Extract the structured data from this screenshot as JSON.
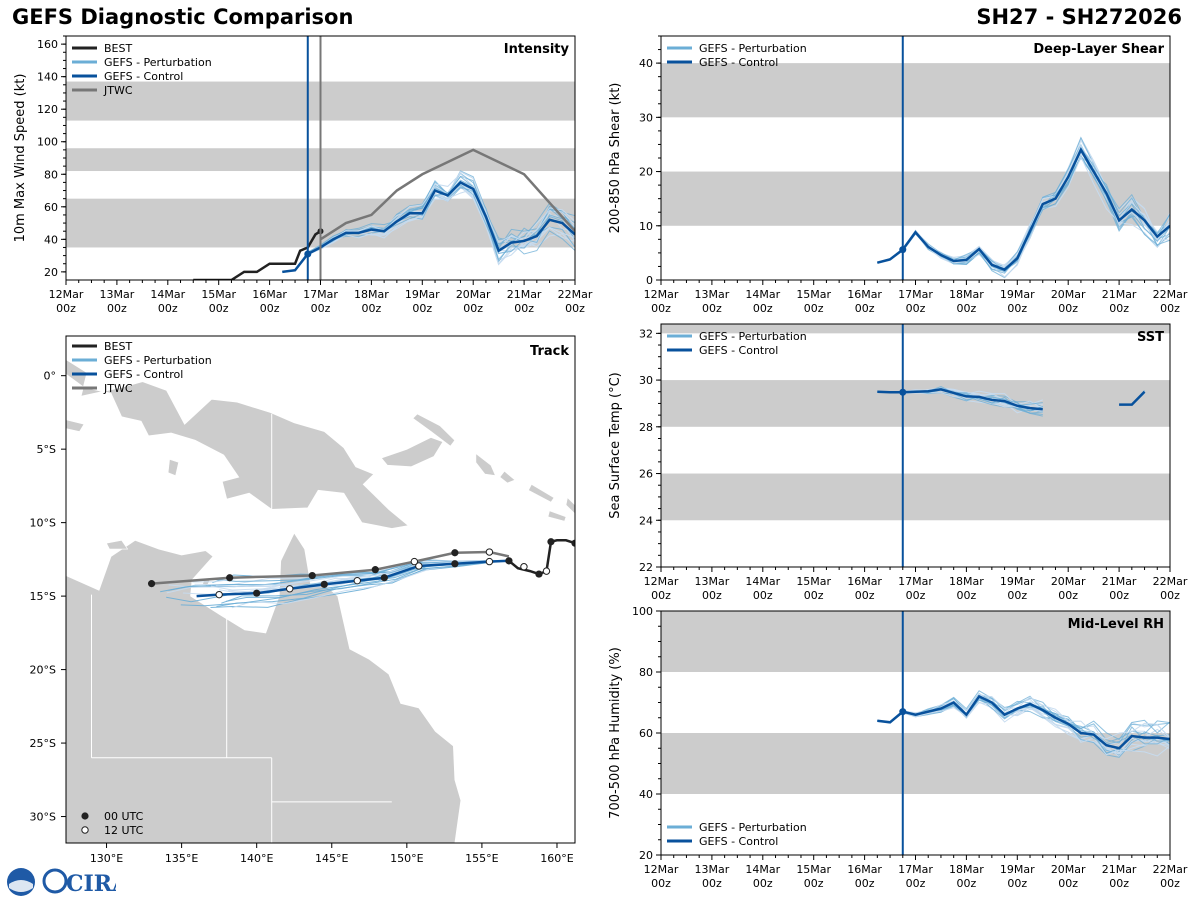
{
  "header": {
    "title": "GEFS Diagnostic Comparison",
    "storm_id": "SH27 - SH272026"
  },
  "logo": {
    "text": "CIRA",
    "brand_color": "#1f5aa6"
  },
  "colors": {
    "best": "#222222",
    "perturbation": "#6baed6",
    "control": "#08519c",
    "jtwc": "#777777",
    "band": "#cccccc",
    "land": "#cccccc"
  },
  "legend_labels": {
    "best": "BEST",
    "perturbation": "GEFS - Perturbation",
    "control": "GEFS - Control",
    "jtwc": "JTWC",
    "utc00": "00 UTC",
    "utc12": "12 UTC"
  },
  "time_axis": {
    "labels": [
      "12Mar",
      "13Mar",
      "14Mar",
      "15Mar",
      "16Mar",
      "17Mar",
      "18Mar",
      "19Mar",
      "20Mar",
      "21Mar",
      "22Mar"
    ],
    "sub_label": "00z",
    "range_days": [
      0,
      10
    ]
  },
  "track_labels": {
    "lat_ticks": [
      0,
      -5,
      -10,
      -15,
      -20,
      -25,
      -30
    ],
    "lat_labels": [
      "0°",
      "5°S",
      "10°S",
      "15°S",
      "20°S",
      "25°S",
      "30°S"
    ],
    "lon_ticks": [
      130,
      135,
      140,
      145,
      150,
      155,
      160
    ],
    "lon_labels": [
      "130°E",
      "135°E",
      "140°E",
      "145°E",
      "150°E",
      "155°E",
      "160°E"
    ]
  },
  "chart_data": [
    {
      "id": "intensity",
      "type": "line",
      "title": "Intensity",
      "ylabel": "10m Max Wind Speed (kt)",
      "ylim": [
        15,
        165
      ],
      "yticks": [
        20,
        40,
        60,
        80,
        100,
        120,
        140,
        160
      ],
      "bands": [
        [
          35,
          65
        ],
        [
          82,
          96
        ],
        [
          113,
          137
        ]
      ],
      "init_time": 4.75,
      "init_time_jtwc": 5.0,
      "series": [
        {
          "name": "BEST",
          "x": [
            2.5,
            3.25,
            3.5,
            3.75,
            4.0,
            4.25,
            4.5,
            4.6,
            4.75,
            4.9,
            5.0
          ],
          "y": [
            15,
            15,
            20,
            20,
            25,
            25,
            25,
            33,
            35,
            43,
            45
          ]
        },
        {
          "name": "GEFS - Control",
          "x": [
            4.25,
            4.5,
            4.75,
            5.0,
            5.25,
            5.5,
            5.75,
            6.0,
            6.25,
            6.5,
            6.75,
            7.0,
            7.25,
            7.5,
            7.75,
            8.0,
            8.25,
            8.5,
            8.75,
            9.0,
            9.25,
            9.5,
            9.75,
            10.0
          ],
          "y": [
            20,
            21,
            31,
            35,
            40,
            44,
            44,
            46,
            45,
            51,
            56,
            56,
            70,
            67,
            75,
            71,
            54,
            33,
            38,
            39,
            42,
            52,
            50,
            43
          ]
        },
        {
          "name": "JTWC",
          "x": [
            5.0,
            5.5,
            6.0,
            6.5,
            7.0,
            8.0,
            9.0,
            10.0
          ],
          "y": [
            40,
            50,
            55,
            70,
            80,
            95,
            80,
            45
          ]
        }
      ]
    },
    {
      "id": "shear",
      "type": "line",
      "title": "Deep-Layer Shear",
      "ylabel": "200-850 hPa Shear (kt)",
      "ylim": [
        0,
        45
      ],
      "yticks": [
        0,
        10,
        20,
        30,
        40
      ],
      "bands": [
        [
          10,
          20
        ],
        [
          30,
          40
        ]
      ],
      "init_time": 4.75,
      "series": [
        {
          "name": "GEFS - Control",
          "x": [
            4.25,
            4.5,
            4.75,
            5.0,
            5.25,
            5.5,
            5.75,
            6.0,
            6.25,
            6.5,
            6.75,
            7.0,
            7.25,
            7.5,
            7.75,
            8.0,
            8.25,
            8.5,
            8.75,
            9.0,
            9.25,
            9.5,
            9.75,
            10.0
          ],
          "y": [
            3.2,
            3.8,
            5.6,
            8.8,
            6.1,
            4.6,
            3.5,
            3.7,
            5.7,
            2.8,
            1.9,
            4.0,
            9.0,
            14.0,
            15.0,
            19.0,
            24.0,
            20.0,
            16.0,
            11.0,
            13.0,
            11.0,
            8.0,
            10.0
          ]
        }
      ]
    },
    {
      "id": "sst",
      "type": "line",
      "title": "SST",
      "ylabel": "Sea Surface Temp (°C)",
      "ylim": [
        22,
        32.4
      ],
      "yticks": [
        22,
        24,
        26,
        28,
        30,
        32
      ],
      "bands": [
        [
          24,
          26
        ],
        [
          28,
          30
        ],
        [
          32,
          34
        ]
      ],
      "init_time": 4.75,
      "series": [
        {
          "name": "GEFS - Control",
          "x": [
            4.25,
            4.5,
            4.75,
            5.0,
            5.25,
            5.5,
            5.75,
            6.0,
            6.25,
            6.5,
            6.75,
            7.0,
            7.25,
            7.5
          ],
          "y": [
            29.5,
            29.48,
            29.48,
            29.5,
            29.52,
            29.6,
            29.45,
            29.3,
            29.28,
            29.15,
            29.1,
            28.9,
            28.8,
            28.75
          ]
        },
        {
          "name": "GEFS - Control",
          "x": [
            9.0,
            9.25,
            9.5
          ],
          "y": [
            28.95,
            28.95,
            29.5
          ]
        }
      ]
    },
    {
      "id": "rh",
      "type": "line",
      "title": "Mid-Level RH",
      "ylabel": "700-500 hPa Humidity (%)",
      "ylim": [
        20,
        100
      ],
      "yticks": [
        20,
        40,
        60,
        80,
        100
      ],
      "bands": [
        [
          40,
          60
        ],
        [
          80,
          100
        ]
      ],
      "init_time": 4.75,
      "series": [
        {
          "name": "GEFS - Control",
          "x": [
            4.25,
            4.5,
            4.75,
            5.0,
            5.25,
            5.5,
            5.75,
            6.0,
            6.25,
            6.5,
            6.75,
            7.0,
            7.25,
            7.5,
            7.75,
            8.0,
            8.25,
            8.5,
            8.75,
            9.0,
            9.25,
            9.5,
            9.75,
            10.0
          ],
          "y": [
            64,
            63.5,
            67,
            66,
            67,
            68,
            70,
            66,
            72,
            70,
            66,
            68,
            69.5,
            67.5,
            65,
            63,
            60,
            59.5,
            56,
            55,
            59,
            58.5,
            58.5,
            58
          ]
        }
      ]
    },
    {
      "id": "track",
      "type": "line",
      "title": "Track",
      "xlim": [
        127.3,
        161.2
      ],
      "ylim": [
        -31.8,
        2.7
      ],
      "series": [
        {
          "name": "BEST",
          "lon": [
            156.8,
            157.4,
            158.2,
            158.8,
            159.3,
            159.6,
            160.0,
            160.6,
            161.2
          ],
          "lat": [
            -12.6,
            -13.1,
            -13.3,
            -13.5,
            -13.3,
            -11.3,
            -11.2,
            -11.2,
            -11.4
          ]
        },
        {
          "name": "GEFS - Control",
          "lon": [
            136.0,
            137.5,
            140.0,
            142.2,
            144.5,
            146.7,
            148.5,
            150.8,
            153.2,
            155.5,
            156.8
          ],
          "lat": [
            -15.0,
            -14.9,
            -14.8,
            -14.5,
            -14.2,
            -13.95,
            -13.75,
            -12.95,
            -12.8,
            -12.65,
            -12.6
          ]
        },
        {
          "name": "JTWC",
          "lon": [
            133.0,
            138.2,
            143.7,
            147.9,
            150.5,
            153.2,
            155.5,
            156.8
          ],
          "lat": [
            -14.15,
            -13.75,
            -13.6,
            -13.2,
            -12.65,
            -12.05,
            -12.0,
            -12.3
          ]
        }
      ],
      "markers_00utc": [
        [
          133.0,
          -14.15
        ],
        [
          138.2,
          -13.75
        ],
        [
          143.7,
          -13.6
        ],
        [
          147.9,
          -13.2
        ],
        [
          153.2,
          -12.05
        ],
        [
          140.0,
          -14.8
        ],
        [
          144.5,
          -14.2
        ],
        [
          148.5,
          -13.75
        ],
        [
          153.2,
          -12.8
        ],
        [
          156.8,
          -12.6
        ],
        [
          158.8,
          -13.5
        ],
        [
          159.6,
          -11.3
        ],
        [
          161.2,
          -11.4
        ]
      ],
      "markers_12utc": [
        [
          137.5,
          -14.9
        ],
        [
          142.2,
          -14.5
        ],
        [
          146.7,
          -13.95
        ],
        [
          150.8,
          -12.95
        ],
        [
          155.5,
          -12.65
        ],
        [
          150.5,
          -12.65
        ],
        [
          155.5,
          -12.0
        ],
        [
          157.8,
          -13.0
        ],
        [
          159.3,
          -13.3
        ]
      ]
    }
  ]
}
